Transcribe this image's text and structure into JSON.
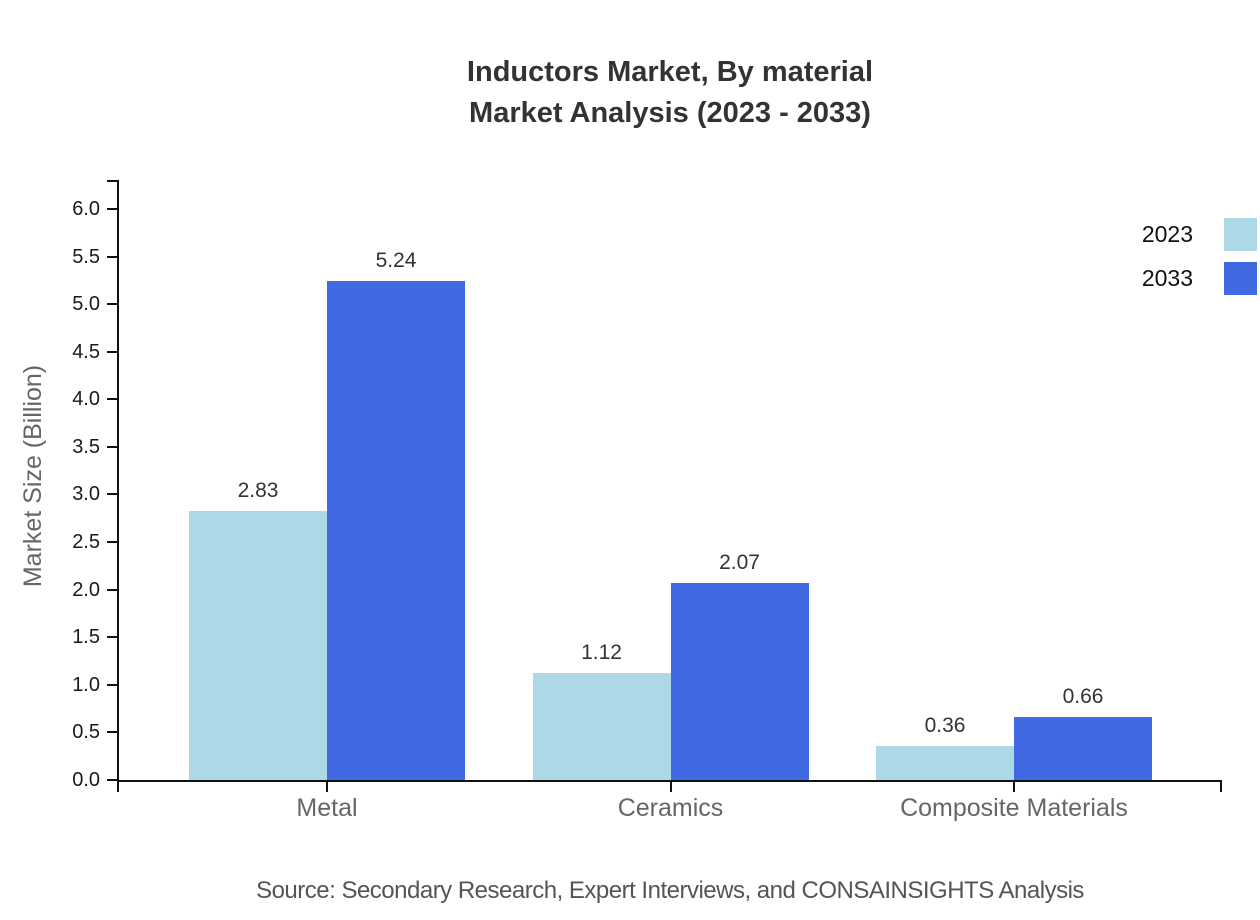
{
  "chart_data": {
    "type": "bar",
    "title_line1": "Inductors Market, By material",
    "title_line2": "Market Analysis (2023 - 2033)",
    "ylabel": "Market Size (Billion)",
    "xlabel": "",
    "categories": [
      "Metal",
      "Ceramics",
      "Composite Materials"
    ],
    "series": [
      {
        "name": "2023",
        "color": "#ADD8E6",
        "values": [
          2.83,
          1.12,
          0.36
        ]
      },
      {
        "name": "2033",
        "color": "#4169E1",
        "values": [
          5.24,
          2.07,
          0.66
        ]
      }
    ],
    "yticks": [
      0.0,
      0.5,
      1.0,
      1.5,
      2.0,
      2.5,
      3.0,
      3.5,
      4.0,
      4.5,
      5.0,
      5.5,
      6.0
    ],
    "ylim": [
      0,
      6.3
    ],
    "grid": false,
    "legend_position": "top-right",
    "source": "Source: Secondary Research, Expert Interviews, and CONSAINSIGHTS Analysis",
    "colors": {
      "axis": "#111111",
      "tick_label": "#1a1a1a",
      "title_text": "#333333",
      "muted_text": "#666666",
      "source_text": "#555555"
    }
  }
}
